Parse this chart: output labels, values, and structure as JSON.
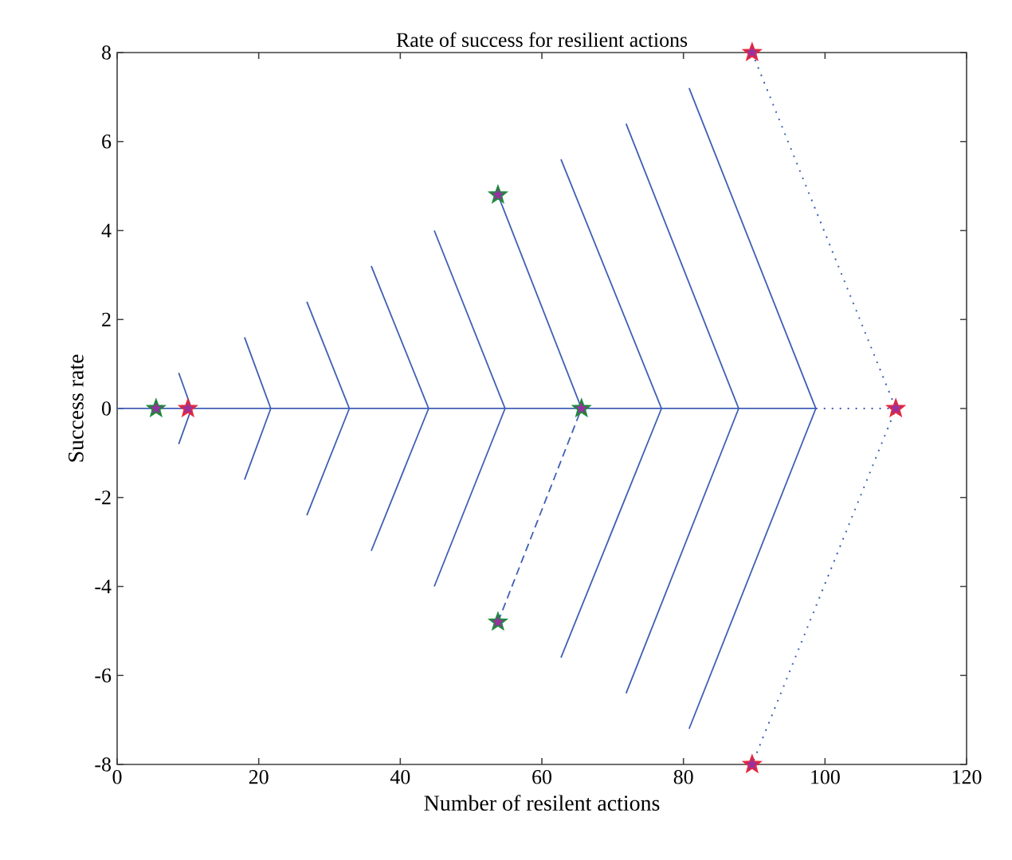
{
  "chart_data": {
    "type": "line",
    "title": "Rate of success for resilient actions",
    "xlabel": "Number of resilent actions",
    "ylabel": "Success rate",
    "xlim": [
      0,
      120
    ],
    "ylim": [
      -8,
      8
    ],
    "xticks": [
      0,
      20,
      40,
      60,
      80,
      100,
      120
    ],
    "yticks": [
      -8,
      -6,
      -4,
      -2,
      0,
      2,
      4,
      6,
      8
    ],
    "series": [
      {
        "line_style": "solid",
        "marker": "none",
        "color": "#3f5fb5",
        "x": [
          0,
          98.7
        ],
        "values": [
          0,
          0
        ]
      },
      {
        "line_style": "solid",
        "marker": "none",
        "color": "#3f5fb5",
        "x": [
          8.7,
          10.5,
          8.7
        ],
        "values": [
          0.8,
          0,
          -0.8
        ]
      },
      {
        "line_style": "solid",
        "marker": "none",
        "color": "#3f5fb5",
        "x": [
          18,
          21.7,
          18
        ],
        "values": [
          1.6,
          0,
          -1.6
        ]
      },
      {
        "line_style": "solid",
        "marker": "none",
        "color": "#3f5fb5",
        "x": [
          26.8,
          32.8,
          26.8
        ],
        "values": [
          2.4,
          0,
          -2.4
        ]
      },
      {
        "line_style": "solid",
        "marker": "none",
        "color": "#3f5fb5",
        "x": [
          35.9,
          44.0,
          35.9
        ],
        "values": [
          3.2,
          0,
          -3.2
        ]
      },
      {
        "line_style": "solid",
        "marker": "none",
        "color": "#3f5fb5",
        "x": [
          44.8,
          54.8,
          44.8
        ],
        "values": [
          4.0,
          0,
          -4.0
        ]
      },
      {
        "line_style": "solid",
        "marker": "none",
        "color": "#3f5fb5",
        "x": [
          53.8,
          65.6
        ],
        "values": [
          4.8,
          0
        ]
      },
      {
        "line_style": "dashed",
        "marker": "none",
        "color": "#3f5fb5",
        "x": [
          53.8,
          65.6
        ],
        "values": [
          -4.8,
          0
        ]
      },
      {
        "line_style": "solid",
        "marker": "none",
        "color": "#3f5fb5",
        "x": [
          62.7,
          76.9,
          62.7
        ],
        "values": [
          5.6,
          0,
          -5.6
        ]
      },
      {
        "line_style": "solid",
        "marker": "none",
        "color": "#3f5fb5",
        "x": [
          71.9,
          87.8,
          71.9
        ],
        "values": [
          6.4,
          0,
          -6.4
        ]
      },
      {
        "line_style": "solid",
        "marker": "none",
        "color": "#3f5fb5",
        "x": [
          80.8,
          98.7,
          80.8
        ],
        "values": [
          7.2,
          0,
          -7.2
        ]
      },
      {
        "line_style": "dotted",
        "marker": "none",
        "color": "#3f5fb5",
        "x": [
          89.7,
          110,
          89.7
        ],
        "values": [
          8,
          0,
          -8
        ]
      },
      {
        "line_style": "dotted",
        "marker": "none",
        "color": "#3f5fb5",
        "x": [
          98.7,
          110
        ],
        "values": [
          0,
          0
        ]
      },
      {
        "type": "scatter",
        "marker": "star",
        "color": "#1f8a3c",
        "x": [
          5.5,
          65.6,
          53.8,
          53.8
        ],
        "values": [
          0,
          0,
          4.8,
          -4.8
        ]
      },
      {
        "type": "scatter",
        "marker": "star",
        "color": "#e8283c",
        "x": [
          10,
          89.7,
          110,
          89.7
        ],
        "values": [
          0,
          8,
          0,
          -8
        ]
      }
    ]
  }
}
